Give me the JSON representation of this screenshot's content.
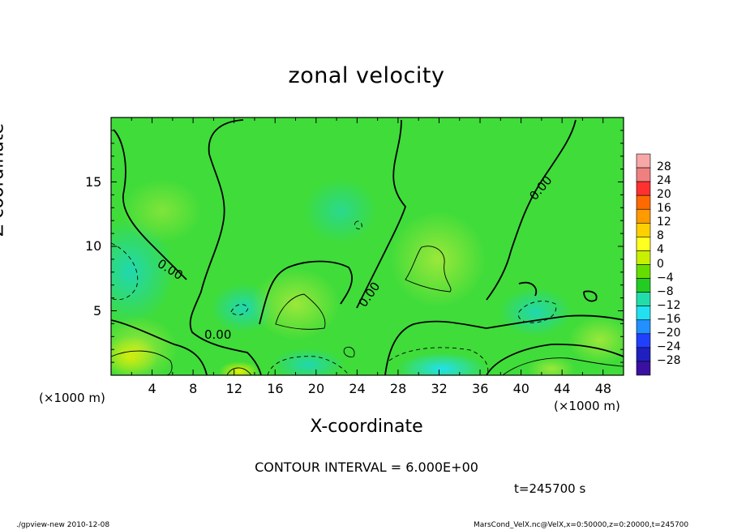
{
  "chart_data": {
    "type": "contour",
    "title": "zonal velocity",
    "xlabel": "X-coordinate",
    "ylabel": "Z-coordinate",
    "x_unit": "(×1000 m)",
    "y_unit": "(×1000 m)",
    "xlim": [
      0,
      50
    ],
    "ylim": [
      0,
      20
    ],
    "x_ticks": [
      4,
      8,
      12,
      16,
      20,
      24,
      28,
      32,
      36,
      40,
      44,
      48
    ],
    "y_ticks": [
      5,
      10,
      15
    ],
    "contour_interval_text": "CONTOUR INTERVAL = 6.000E+00",
    "contour_labels": [
      "0.00",
      "0.00",
      "0.00",
      "0.00"
    ],
    "colorbar": {
      "labels": [
        "28",
        "24",
        "20",
        "16",
        "12",
        "8",
        "4",
        "0",
        "-4",
        "-8",
        "-12",
        "-16",
        "-20",
        "-24",
        "-28"
      ],
      "colors": [
        "#f7a7a7",
        "#f08080",
        "#ff3030",
        "#ff6a00",
        "#ff9a00",
        "#ffd000",
        "#ffff20",
        "#c8f000",
        "#66dd00",
        "#22cc22",
        "#22ddaa",
        "#22e0f0",
        "#2290ff",
        "#2040ff",
        "#2020c0",
        "#3a10a0"
      ]
    },
    "time_text": "t=245700 s"
  },
  "footer": {
    "left": "./gpview-new  2010-12-08",
    "right": "MarsCond_VelX.nc@VelX,x=0:50000,z=0:20000,t=245700"
  }
}
